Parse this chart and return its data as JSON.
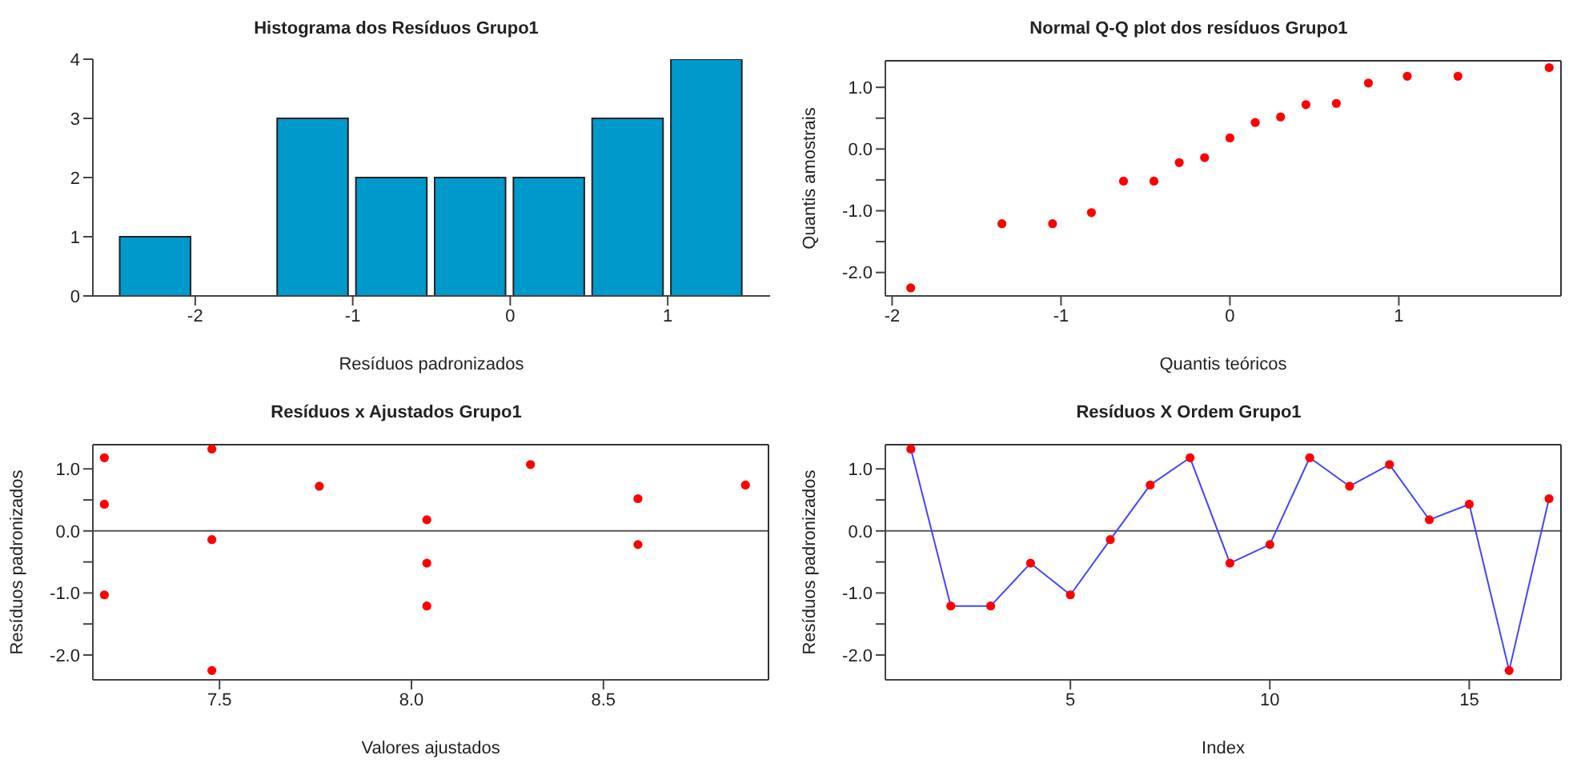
{
  "chart_data": [
    {
      "type": "histogram",
      "title": "Histograma dos Resíduos Grupo1",
      "xlabel": "Resíduos padronizados",
      "bins": [
        -2.5,
        -2,
        -1.5,
        -1,
        -0.5,
        0,
        0.5,
        1,
        1.5
      ],
      "values": [
        1,
        0,
        3,
        2,
        2,
        2,
        3,
        4
      ],
      "color": "#0099cc",
      "xlim": [
        -2.65,
        1.65
      ],
      "xticks": [
        -2,
        -1,
        0,
        1
      ],
      "ylim": [
        0,
        4
      ],
      "yticks": [
        0,
        1,
        2,
        3,
        4
      ]
    },
    {
      "type": "scatter",
      "title": "Normal Q-Q plot dos resíduos Grupo1",
      "xlabel": "Quantis teóricos",
      "ylabel": "Quantis amostrais",
      "marker": "circle",
      "color": "#ff0000",
      "x": [
        -1.89,
        -1.35,
        -1.05,
        -0.82,
        -0.63,
        -0.45,
        -0.3,
        -0.15,
        0,
        0.15,
        0.3,
        0.45,
        0.63,
        0.82,
        1.05,
        1.35,
        1.89
      ],
      "values": [
        -2.25,
        -1.21,
        -1.21,
        -1.03,
        -0.52,
        -0.52,
        -0.22,
        -0.14,
        0.18,
        0.43,
        0.52,
        0.72,
        0.74,
        1.07,
        1.18,
        1.18,
        1.32
      ],
      "xlim": [
        -2.04,
        1.96
      ],
      "xticks": [
        -2,
        -1,
        0,
        1
      ],
      "ylim": [
        -2.38,
        1.43
      ],
      "yticks": [
        {
          "value": -2,
          "label": "-2.0"
        },
        {
          "value": -1.5,
          "label": null
        },
        {
          "value": -1,
          "label": "-1.0"
        },
        {
          "value": -0.5,
          "label": null
        },
        {
          "value": 0,
          "label": "0.0"
        },
        {
          "value": 0.5,
          "label": null
        },
        {
          "value": 1,
          "label": "1.0"
        }
      ]
    },
    {
      "type": "scatter",
      "title": "Resíduos x Ajustados Grupo1",
      "xlabel": "Valores ajustados",
      "ylabel": "Resíduos padronizados",
      "marker": "circle",
      "color": "#ff0000",
      "x": [
        7.2,
        7.2,
        7.2,
        7.48,
        7.48,
        7.48,
        7.76,
        8.04,
        8.04,
        8.04,
        8.31,
        8.59,
        8.59,
        8.87
      ],
      "values": [
        1.18,
        0.43,
        -1.03,
        1.32,
        -0.14,
        -2.25,
        0.72,
        0.18,
        -0.52,
        -1.21,
        1.07,
        0.52,
        -0.22,
        0.74
      ],
      "xlim": [
        7.17,
        8.93
      ],
      "xticks": [
        7.5,
        {
          "value": 8,
          "label": "8.0"
        },
        8.5
      ],
      "ylim": [
        -2.4,
        1.39
      ],
      "yticks": [
        {
          "value": -2,
          "label": "-2.0"
        },
        {
          "value": -1.5,
          "label": null
        },
        {
          "value": -1,
          "label": "-1.0"
        },
        {
          "value": -0.5,
          "label": null
        },
        {
          "value": 0,
          "label": "0.0"
        },
        {
          "value": 0.5,
          "label": null
        },
        {
          "value": 1,
          "label": "1.0"
        }
      ],
      "ref_lines": [
        {
          "axis": "y",
          "value": 0,
          "color": "#555555"
        }
      ]
    },
    {
      "type": "line",
      "title": "Resíduos X Ordem Grupo1",
      "xlabel": "Index",
      "ylabel": "Resíduos padronizados",
      "x": [
        1,
        2,
        3,
        4,
        5,
        6,
        7,
        8,
        9,
        10,
        11,
        12,
        13,
        14,
        15,
        16,
        17
      ],
      "series": [
        {
          "type": "line",
          "color": "#4444ff",
          "values": [
            1.32,
            -1.21,
            -1.21,
            -0.52,
            -1.03,
            -0.14,
            0.74,
            1.18,
            -0.52,
            -0.22,
            1.18,
            0.72,
            1.07,
            0.18,
            0.43,
            -2.25,
            0.52
          ]
        },
        {
          "type": "scatter",
          "color": "#ff0000",
          "values": [
            1.32,
            -1.21,
            -1.21,
            -0.52,
            -1.03,
            -0.14,
            0.74,
            1.18,
            -0.52,
            -0.22,
            1.18,
            0.72,
            1.07,
            0.18,
            0.43,
            -2.25,
            0.52
          ]
        }
      ],
      "xlim": [
        0.36,
        17.3
      ],
      "xticks": [
        5,
        10,
        15
      ],
      "ylim": [
        -2.4,
        1.39
      ],
      "yticks": [
        {
          "value": -2,
          "label": "-2.0"
        },
        {
          "value": -1.5,
          "label": null
        },
        {
          "value": -1,
          "label": "-1.0"
        },
        {
          "value": -0.5,
          "label": null
        },
        {
          "value": 0,
          "label": "0.0"
        },
        {
          "value": 0.5,
          "label": null
        },
        {
          "value": 1,
          "label": "1.0"
        }
      ],
      "ref_lines": [
        {
          "axis": "y",
          "value": 0,
          "color": "#555555"
        }
      ]
    }
  ]
}
